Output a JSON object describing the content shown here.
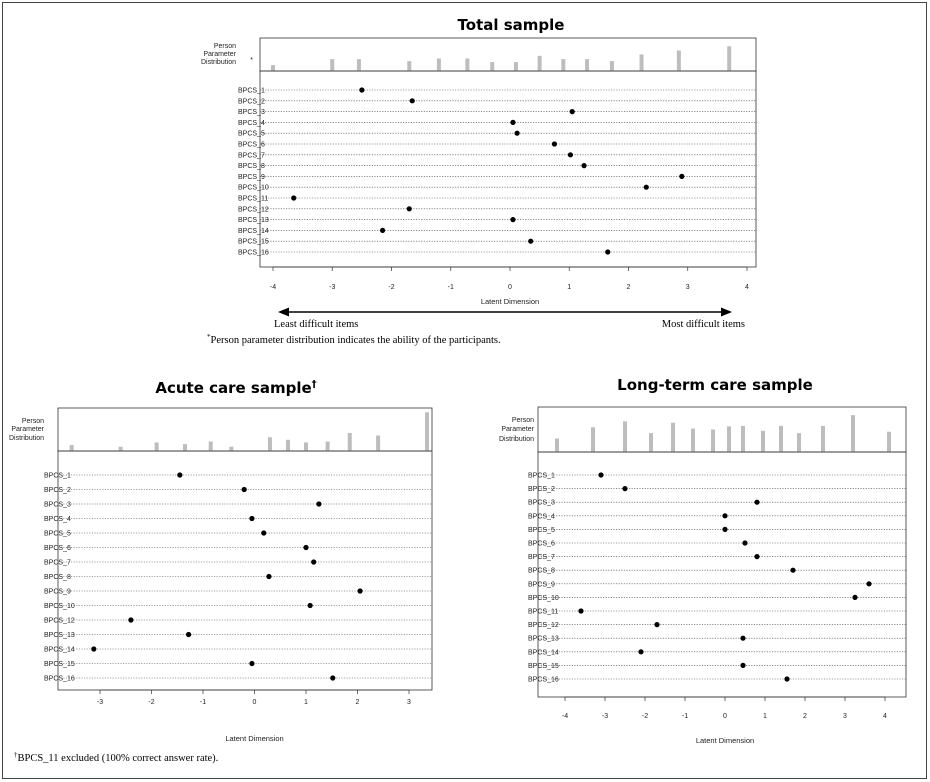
{
  "chart_data": [
    {
      "type": "scatter",
      "title": "Total sample",
      "title_mark": "",
      "xlabel": "Latent Dimension",
      "xlim": [
        -4.25,
        4.0
      ],
      "xticks": [
        -4,
        -3,
        -2,
        -1,
        0,
        1,
        2,
        3,
        4
      ],
      "distribution_label": [
        "Person",
        "Parameter",
        "Distribution",
        "*"
      ],
      "person_distribution": [
        {
          "x": -4.0,
          "v": 0.18
        },
        {
          "x": -3.0,
          "v": 0.36
        },
        {
          "x": -2.55,
          "v": 0.36
        },
        {
          "x": -1.7,
          "v": 0.3
        },
        {
          "x": -1.2,
          "v": 0.38
        },
        {
          "x": -0.72,
          "v": 0.38
        },
        {
          "x": -0.3,
          "v": 0.27
        },
        {
          "x": 0.1,
          "v": 0.27
        },
        {
          "x": 0.5,
          "v": 0.46
        },
        {
          "x": 0.9,
          "v": 0.36
        },
        {
          "x": 1.3,
          "v": 0.36
        },
        {
          "x": 1.72,
          "v": 0.3
        },
        {
          "x": 2.22,
          "v": 0.5
        },
        {
          "x": 2.85,
          "v": 0.62
        },
        {
          "x": 3.7,
          "v": 0.75
        }
      ],
      "items": [
        {
          "label": "BPCS_1",
          "x": -2.5
        },
        {
          "label": "BPCS_2",
          "x": -1.65
        },
        {
          "label": "BPCS_3",
          "x": 1.05
        },
        {
          "label": "BPCS_4",
          "x": 0.05
        },
        {
          "label": "BPCS_5",
          "x": 0.12
        },
        {
          "label": "BPCS_6",
          "x": 0.75
        },
        {
          "label": "BPCS_7",
          "x": 1.02
        },
        {
          "label": "BPCS_8",
          "x": 1.25
        },
        {
          "label": "BPCS_9",
          "x": 2.9
        },
        {
          "label": "BPCS_10",
          "x": 2.3
        },
        {
          "label": "BPCS_11",
          "x": -3.65
        },
        {
          "label": "BPCS_12",
          "x": -1.7
        },
        {
          "label": "BPCS_13",
          "x": 0.05
        },
        {
          "label": "BPCS_14",
          "x": -2.15
        },
        {
          "label": "BPCS_15",
          "x": 0.35
        },
        {
          "label": "BPCS_16",
          "x": 1.65
        }
      ],
      "range_arrow": {
        "left": "Least difficult items",
        "right": "Most difficult items"
      },
      "footnote": {
        "mark": "*",
        "text": "Person parameter distribution indicates the ability of the participants."
      }
    },
    {
      "type": "scatter",
      "title": "Acute care sample",
      "title_mark": "†",
      "xlabel": "Latent Dimension",
      "xlim": [
        -3.75,
        3.45
      ],
      "xticks": [
        -3,
        -2,
        -1,
        0,
        1,
        2,
        3
      ],
      "distribution_label": [
        "Person",
        "Parameter",
        "Distribution"
      ],
      "person_distribution": [
        {
          "x": -3.55,
          "v": 0.14
        },
        {
          "x": -2.6,
          "v": 0.1
        },
        {
          "x": -1.9,
          "v": 0.2
        },
        {
          "x": -1.35,
          "v": 0.16
        },
        {
          "x": -0.85,
          "v": 0.22
        },
        {
          "x": -0.45,
          "v": 0.1
        },
        {
          "x": 0.3,
          "v": 0.32
        },
        {
          "x": 0.65,
          "v": 0.26
        },
        {
          "x": 1.0,
          "v": 0.2
        },
        {
          "x": 1.42,
          "v": 0.22
        },
        {
          "x": 1.85,
          "v": 0.42
        },
        {
          "x": 2.4,
          "v": 0.36
        },
        {
          "x": 3.35,
          "v": 0.9
        }
      ],
      "items": [
        {
          "label": "BPCS_1",
          "x": -1.45
        },
        {
          "label": "BPCS_2",
          "x": -0.2
        },
        {
          "label": "BPCS_3",
          "x": 1.25
        },
        {
          "label": "BPCS_4",
          "x": -0.05
        },
        {
          "label": "BPCS_5",
          "x": 0.18
        },
        {
          "label": "BPCS_6",
          "x": 1.0
        },
        {
          "label": "BPCS_7",
          "x": 1.15
        },
        {
          "label": "BPCS_8",
          "x": 0.28
        },
        {
          "label": "BPCS_9",
          "x": 2.05
        },
        {
          "label": "BPCS_10",
          "x": 1.08
        },
        {
          "label": "BPCS_12",
          "x": -2.4
        },
        {
          "label": "BPCS_13",
          "x": -1.28
        },
        {
          "label": "BPCS_14",
          "x": -3.12
        },
        {
          "label": "BPCS_15",
          "x": -0.05
        },
        {
          "label": "BPCS_16",
          "x": 1.52
        }
      ],
      "footnote": {
        "mark": "†",
        "text": "BPCS_11 excluded (100% correct answer rate)."
      }
    },
    {
      "type": "scatter",
      "title": "Long-term care sample",
      "title_mark": "",
      "xlabel": "Latent Dimension",
      "xlim": [
        -4.4,
        4.3
      ],
      "xticks": [
        -4,
        -3,
        -2,
        -1,
        0,
        1,
        2,
        3,
        4
      ],
      "distribution_label": [
        "Person",
        "Parameter",
        "Distribution"
      ],
      "person_distribution": [
        {
          "x": -4.2,
          "v": 0.3
        },
        {
          "x": -3.3,
          "v": 0.55
        },
        {
          "x": -2.5,
          "v": 0.68
        },
        {
          "x": -1.85,
          "v": 0.42
        },
        {
          "x": -1.3,
          "v": 0.65
        },
        {
          "x": -0.8,
          "v": 0.52
        },
        {
          "x": -0.3,
          "v": 0.5
        },
        {
          "x": 0.1,
          "v": 0.57
        },
        {
          "x": 0.45,
          "v": 0.58
        },
        {
          "x": 0.95,
          "v": 0.47
        },
        {
          "x": 1.4,
          "v": 0.58
        },
        {
          "x": 1.85,
          "v": 0.42
        },
        {
          "x": 2.45,
          "v": 0.58
        },
        {
          "x": 3.2,
          "v": 0.82
        },
        {
          "x": 4.1,
          "v": 0.45
        }
      ],
      "items": [
        {
          "label": "BPCS_1",
          "x": -3.1
        },
        {
          "label": "BPCS_2",
          "x": -2.5
        },
        {
          "label": "BPCS_3",
          "x": 0.8
        },
        {
          "label": "BPCS_4",
          "x": 0.0
        },
        {
          "label": "BPCS_5",
          "x": 0.0
        },
        {
          "label": "BPCS_6",
          "x": 0.5
        },
        {
          "label": "BPCS_7",
          "x": 0.8
        },
        {
          "label": "BPCS_8",
          "x": 1.7
        },
        {
          "label": "BPCS_9",
          "x": 3.6
        },
        {
          "label": "BPCS_10",
          "x": 3.25
        },
        {
          "label": "BPCS_11",
          "x": -3.6
        },
        {
          "label": "BPCS_12",
          "x": -1.7
        },
        {
          "label": "BPCS_13",
          "x": 0.45
        },
        {
          "label": "BPCS_14",
          "x": -2.1
        },
        {
          "label": "BPCS_15",
          "x": 0.45
        },
        {
          "label": "BPCS_16",
          "x": 1.55
        }
      ]
    }
  ]
}
